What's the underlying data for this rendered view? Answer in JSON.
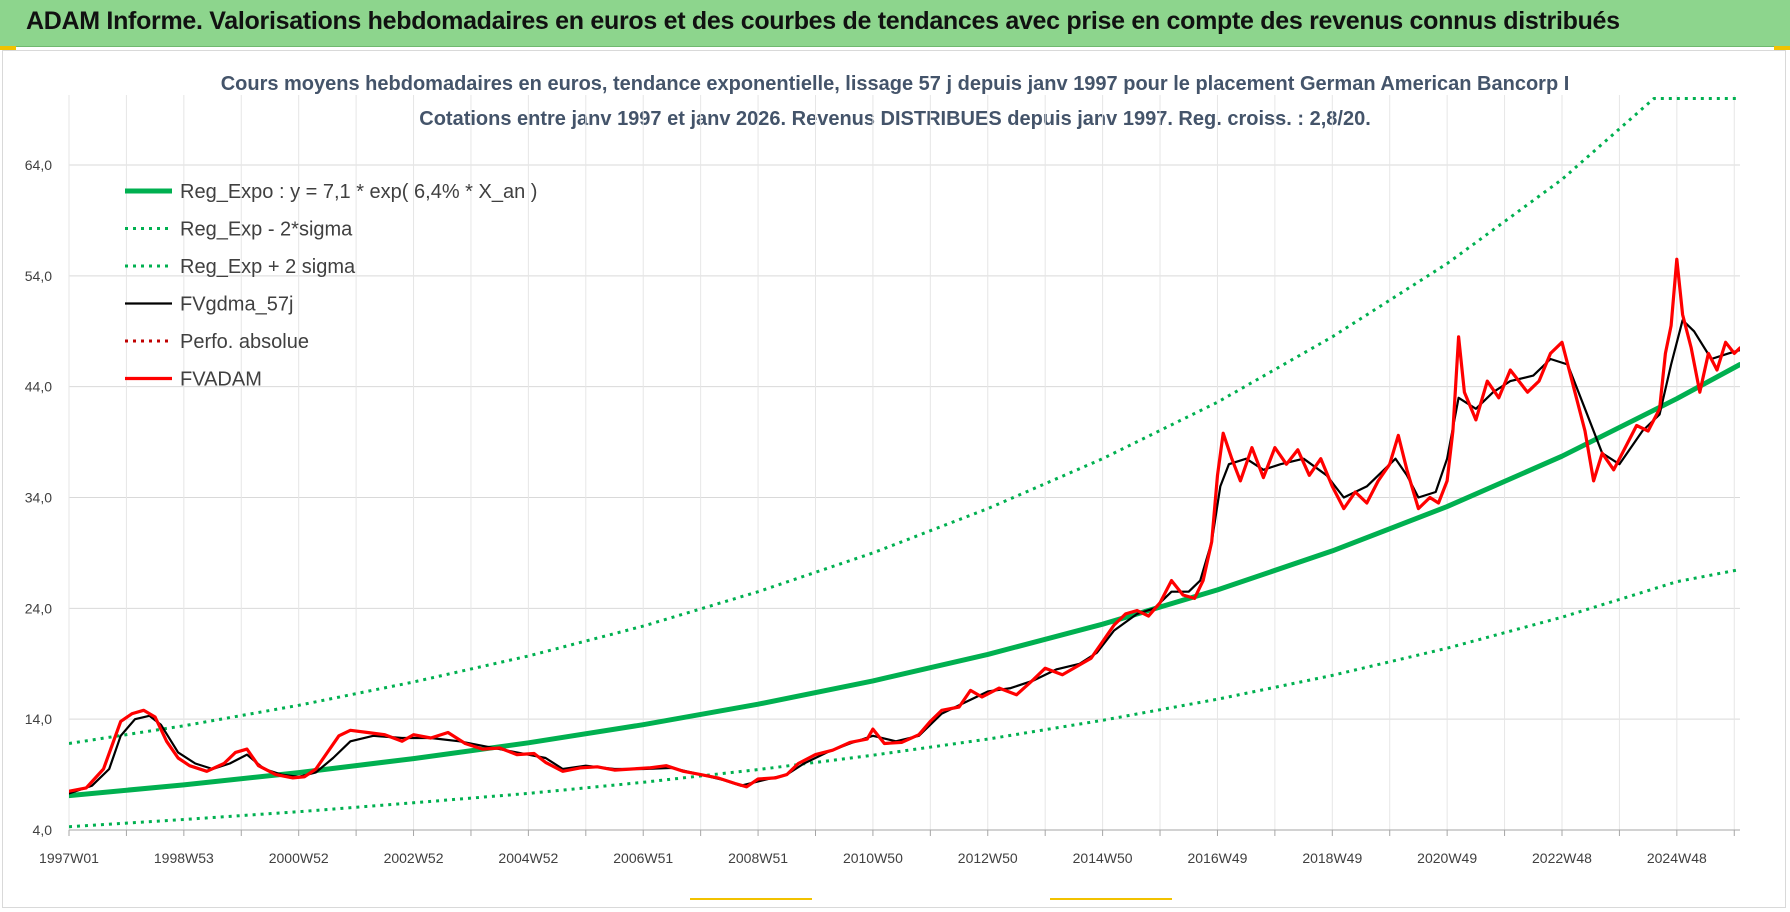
{
  "banner": {
    "title": "ADAM Informe. Valorisations hebdomadaires en euros et des courbes de tendances avec prise en compte des revenus connus distribués",
    "color": "#8dd58d"
  },
  "chart_data": {
    "type": "line",
    "title": "Cours moyens hebdomadaires en euros, tendance exponentielle, lissage 57 j depuis janv 1997  pour le placement German American Bancorp I",
    "subtitle": "Cotations entre janv 1997 et janv 2026. Revenus DISTRIBUES depuis janv 1997.  Reg. croiss. : 2,8/20.",
    "xlabel": "",
    "ylabel": "",
    "x_range": [
      1997.0,
      2026.1
    ],
    "ylim": [
      4.0,
      70.0
    ],
    "y_ticks": [
      4.0,
      14.0,
      24.0,
      34.0,
      44.0,
      54.0,
      64.0
    ],
    "y_tick_labels": [
      "4,0",
      "14,0",
      "24,0",
      "34,0",
      "44,0",
      "54,0",
      "64,0"
    ],
    "x_tick_labels": [
      {
        "x": 1997.0,
        "label": "1997W01"
      },
      {
        "x": 1999.0,
        "label": "1998W53"
      },
      {
        "x": 2001.0,
        "label": "2000W52"
      },
      {
        "x": 2003.0,
        "label": "2002W52"
      },
      {
        "x": 2005.0,
        "label": "2004W52"
      },
      {
        "x": 2007.0,
        "label": "2006W51"
      },
      {
        "x": 2009.0,
        "label": "2008W51"
      },
      {
        "x": 2011.0,
        "label": "2010W50"
      },
      {
        "x": 2013.0,
        "label": "2012W50"
      },
      {
        "x": 2015.0,
        "label": "2014W50"
      },
      {
        "x": 2017.0,
        "label": "2016W49"
      },
      {
        "x": 2019.0,
        "label": "2018W49"
      },
      {
        "x": 2021.0,
        "label": "2020W49"
      },
      {
        "x": 2023.0,
        "label": "2022W48"
      },
      {
        "x": 2025.0,
        "label": "2024W48"
      }
    ],
    "grid": true,
    "legend_position": "top-left",
    "series": [
      {
        "name": "Reg_Expo : y = 7,1 * exp( 6,4% *  X_an )",
        "color": "#00b050",
        "style": "solid-thick",
        "points": [
          [
            1997.0,
            7.1
          ],
          [
            1999.0,
            8.07
          ],
          [
            2001.0,
            9.18
          ],
          [
            2003.0,
            10.44
          ],
          [
            2005.0,
            11.87
          ],
          [
            2007.0,
            13.5
          ],
          [
            2009.0,
            15.35
          ],
          [
            2011.0,
            17.45
          ],
          [
            2013.0,
            19.84
          ],
          [
            2015.0,
            22.57
          ],
          [
            2017.0,
            25.66
          ],
          [
            2019.0,
            29.18
          ],
          [
            2021.0,
            33.18
          ],
          [
            2023.0,
            37.73
          ],
          [
            2025.0,
            42.91
          ],
          [
            2026.1,
            46.0
          ]
        ]
      },
      {
        "name": "Reg_Exp - 2*sigma",
        "color": "#00b050",
        "style": "dotted",
        "points": [
          [
            1997.0,
            4.3
          ],
          [
            1999.0,
            4.95
          ],
          [
            2001.0,
            5.65
          ],
          [
            2003.0,
            6.45
          ],
          [
            2005.0,
            7.3
          ],
          [
            2007.0,
            8.3
          ],
          [
            2009.0,
            9.45
          ],
          [
            2011.0,
            10.75
          ],
          [
            2013.0,
            12.2
          ],
          [
            2015.0,
            13.9
          ],
          [
            2017.0,
            15.8
          ],
          [
            2019.0,
            17.95
          ],
          [
            2021.0,
            20.4
          ],
          [
            2023.0,
            23.2
          ],
          [
            2025.0,
            26.4
          ],
          [
            2026.1,
            27.5
          ]
        ]
      },
      {
        "name": "Reg_Exp + 2 sigma",
        "color": "#00b050",
        "style": "dotted",
        "points": [
          [
            1997.0,
            11.8
          ],
          [
            1999.0,
            13.4
          ],
          [
            2001.0,
            15.25
          ],
          [
            2003.0,
            17.35
          ],
          [
            2005.0,
            19.7
          ],
          [
            2007.0,
            22.4
          ],
          [
            2009.0,
            25.5
          ],
          [
            2011.0,
            29.0
          ],
          [
            2013.0,
            33.0
          ],
          [
            2015.0,
            37.5
          ],
          [
            2017.0,
            42.6
          ],
          [
            2019.0,
            48.5
          ],
          [
            2021.0,
            55.1
          ],
          [
            2023.0,
            62.7
          ],
          [
            2024.6,
            70.0
          ],
          [
            2026.1,
            70.0
          ]
        ]
      },
      {
        "name": "FVgdma_57j",
        "color": "#000000",
        "style": "solid",
        "points": [
          [
            1997.0,
            7.3
          ],
          [
            1997.4,
            8.0
          ],
          [
            1997.7,
            9.5
          ],
          [
            1997.9,
            12.5
          ],
          [
            1998.15,
            14.0
          ],
          [
            1998.4,
            14.3
          ],
          [
            1998.6,
            13.5
          ],
          [
            1998.9,
            11.0
          ],
          [
            1999.2,
            10.0
          ],
          [
            1999.5,
            9.5
          ],
          [
            1999.8,
            10.0
          ],
          [
            2000.1,
            10.8
          ],
          [
            2000.4,
            9.5
          ],
          [
            2000.7,
            9.0
          ],
          [
            2001.0,
            8.8
          ],
          [
            2001.3,
            9.2
          ],
          [
            2001.6,
            10.5
          ],
          [
            2001.9,
            12.0
          ],
          [
            2002.3,
            12.5
          ],
          [
            2002.8,
            12.3
          ],
          [
            2003.3,
            12.3
          ],
          [
            2003.8,
            12.0
          ],
          [
            2004.3,
            11.5
          ],
          [
            2004.8,
            11.0
          ],
          [
            2005.3,
            10.5
          ],
          [
            2005.6,
            9.5
          ],
          [
            2006.0,
            9.8
          ],
          [
            2006.5,
            9.5
          ],
          [
            2007.0,
            9.5
          ],
          [
            2007.5,
            9.6
          ],
          [
            2008.0,
            9.0
          ],
          [
            2008.4,
            8.5
          ],
          [
            2008.7,
            8.0
          ],
          [
            2009.1,
            8.5
          ],
          [
            2009.5,
            9.0
          ],
          [
            2009.8,
            10.0
          ],
          [
            2010.2,
            11.0
          ],
          [
            2010.6,
            11.8
          ],
          [
            2011.0,
            12.5
          ],
          [
            2011.4,
            12.0
          ],
          [
            2011.8,
            12.5
          ],
          [
            2012.2,
            14.5
          ],
          [
            2012.6,
            15.5
          ],
          [
            2013.0,
            16.5
          ],
          [
            2013.4,
            16.8
          ],
          [
            2013.8,
            17.5
          ],
          [
            2014.2,
            18.5
          ],
          [
            2014.6,
            19.0
          ],
          [
            2014.9,
            20.0
          ],
          [
            2015.2,
            22.0
          ],
          [
            2015.6,
            23.5
          ],
          [
            2015.9,
            24.0
          ],
          [
            2016.2,
            25.5
          ],
          [
            2016.5,
            25.5
          ],
          [
            2016.7,
            26.5
          ],
          [
            2016.9,
            30.0
          ],
          [
            2017.05,
            35.0
          ],
          [
            2017.2,
            37.0
          ],
          [
            2017.5,
            37.5
          ],
          [
            2017.8,
            36.5
          ],
          [
            2018.1,
            37.0
          ],
          [
            2018.5,
            37.5
          ],
          [
            2018.9,
            36.0
          ],
          [
            2019.2,
            34.0
          ],
          [
            2019.6,
            35.0
          ],
          [
            2019.9,
            36.5
          ],
          [
            2020.1,
            37.5
          ],
          [
            2020.3,
            36.0
          ],
          [
            2020.5,
            34.0
          ],
          [
            2020.8,
            34.5
          ],
          [
            2021.0,
            37.5
          ],
          [
            2021.2,
            43.0
          ],
          [
            2021.5,
            42.0
          ],
          [
            2021.8,
            43.5
          ],
          [
            2022.1,
            44.5
          ],
          [
            2022.5,
            45.0
          ],
          [
            2022.8,
            46.5
          ],
          [
            2023.1,
            46.0
          ],
          [
            2023.4,
            42.0
          ],
          [
            2023.7,
            38.0
          ],
          [
            2024.0,
            37.0
          ],
          [
            2024.4,
            40.0
          ],
          [
            2024.7,
            41.5
          ],
          [
            2024.9,
            46.0
          ],
          [
            2025.1,
            50.0
          ],
          [
            2025.3,
            49.0
          ],
          [
            2025.6,
            46.5
          ],
          [
            2025.9,
            47.0
          ],
          [
            2026.1,
            47.3
          ]
        ]
      },
      {
        "name": "Perfo. absolue",
        "color": "#c00000",
        "style": "dotted",
        "points": []
      },
      {
        "name": "FVADAM",
        "color": "#ff0000",
        "style": "solid-thick",
        "points": [
          [
            1997.0,
            7.5
          ],
          [
            1997.3,
            7.8
          ],
          [
            1997.6,
            9.5
          ],
          [
            1997.9,
            13.8
          ],
          [
            1998.1,
            14.5
          ],
          [
            1998.3,
            14.8
          ],
          [
            1998.5,
            14.2
          ],
          [
            1998.7,
            12.0
          ],
          [
            1998.9,
            10.5
          ],
          [
            1999.1,
            9.8
          ],
          [
            1999.4,
            9.3
          ],
          [
            1999.7,
            10.0
          ],
          [
            1999.9,
            11.0
          ],
          [
            2000.1,
            11.3
          ],
          [
            2000.3,
            9.8
          ],
          [
            2000.6,
            9.0
          ],
          [
            2000.9,
            8.7
          ],
          [
            2001.1,
            8.8
          ],
          [
            2001.3,
            9.5
          ],
          [
            2001.5,
            11.0
          ],
          [
            2001.7,
            12.5
          ],
          [
            2001.9,
            13.0
          ],
          [
            2002.2,
            12.8
          ],
          [
            2002.5,
            12.6
          ],
          [
            2002.8,
            12.0
          ],
          [
            2003.0,
            12.6
          ],
          [
            2003.3,
            12.3
          ],
          [
            2003.6,
            12.8
          ],
          [
            2003.9,
            11.8
          ],
          [
            2004.2,
            11.3
          ],
          [
            2004.5,
            11.4
          ],
          [
            2004.8,
            10.8
          ],
          [
            2005.1,
            10.9
          ],
          [
            2005.3,
            10.1
          ],
          [
            2005.6,
            9.3
          ],
          [
            2005.9,
            9.6
          ],
          [
            2006.2,
            9.7
          ],
          [
            2006.5,
            9.4
          ],
          [
            2006.8,
            9.5
          ],
          [
            2007.1,
            9.6
          ],
          [
            2007.4,
            9.8
          ],
          [
            2007.7,
            9.3
          ],
          [
            2008.0,
            9.0
          ],
          [
            2008.3,
            8.7
          ],
          [
            2008.6,
            8.2
          ],
          [
            2008.8,
            7.9
          ],
          [
            2009.0,
            8.6
          ],
          [
            2009.3,
            8.7
          ],
          [
            2009.5,
            9.0
          ],
          [
            2009.7,
            10.0
          ],
          [
            2010.0,
            10.8
          ],
          [
            2010.3,
            11.2
          ],
          [
            2010.6,
            11.9
          ],
          [
            2010.9,
            12.2
          ],
          [
            2011.0,
            13.1
          ],
          [
            2011.2,
            11.8
          ],
          [
            2011.5,
            11.9
          ],
          [
            2011.8,
            12.6
          ],
          [
            2012.0,
            13.8
          ],
          [
            2012.2,
            14.8
          ],
          [
            2012.5,
            15.1
          ],
          [
            2012.7,
            16.6
          ],
          [
            2012.9,
            16.0
          ],
          [
            2013.2,
            16.8
          ],
          [
            2013.5,
            16.2
          ],
          [
            2013.8,
            17.6
          ],
          [
            2014.0,
            18.6
          ],
          [
            2014.3,
            18.0
          ],
          [
            2014.6,
            18.9
          ],
          [
            2014.8,
            19.5
          ],
          [
            2015.0,
            21.0
          ],
          [
            2015.2,
            22.5
          ],
          [
            2015.4,
            23.5
          ],
          [
            2015.6,
            23.8
          ],
          [
            2015.8,
            23.3
          ],
          [
            2016.0,
            24.5
          ],
          [
            2016.2,
            26.5
          ],
          [
            2016.4,
            25.2
          ],
          [
            2016.6,
            24.9
          ],
          [
            2016.75,
            26.5
          ],
          [
            2016.9,
            30.0
          ],
          [
            2017.0,
            36.0
          ],
          [
            2017.1,
            39.8
          ],
          [
            2017.25,
            37.5
          ],
          [
            2017.4,
            35.5
          ],
          [
            2017.6,
            38.5
          ],
          [
            2017.8,
            35.8
          ],
          [
            2018.0,
            38.5
          ],
          [
            2018.2,
            37.0
          ],
          [
            2018.4,
            38.3
          ],
          [
            2018.6,
            36.0
          ],
          [
            2018.8,
            37.5
          ],
          [
            2019.0,
            35.0
          ],
          [
            2019.2,
            33.0
          ],
          [
            2019.4,
            34.5
          ],
          [
            2019.6,
            33.5
          ],
          [
            2019.8,
            35.5
          ],
          [
            2020.0,
            37.0
          ],
          [
            2020.15,
            39.6
          ],
          [
            2020.3,
            36.5
          ],
          [
            2020.5,
            33.0
          ],
          [
            2020.7,
            34.0
          ],
          [
            2020.85,
            33.5
          ],
          [
            2021.0,
            35.5
          ],
          [
            2021.1,
            40.0
          ],
          [
            2021.2,
            48.5
          ],
          [
            2021.3,
            43.5
          ],
          [
            2021.5,
            41.0
          ],
          [
            2021.7,
            44.5
          ],
          [
            2021.9,
            43.0
          ],
          [
            2022.1,
            45.5
          ],
          [
            2022.4,
            43.5
          ],
          [
            2022.6,
            44.5
          ],
          [
            2022.8,
            47.0
          ],
          [
            2023.0,
            48.0
          ],
          [
            2023.2,
            44.0
          ],
          [
            2023.4,
            40.0
          ],
          [
            2023.55,
            35.5
          ],
          [
            2023.7,
            38.0
          ],
          [
            2023.9,
            36.5
          ],
          [
            2024.1,
            38.5
          ],
          [
            2024.3,
            40.5
          ],
          [
            2024.5,
            40.0
          ],
          [
            2024.7,
            42.0
          ],
          [
            2024.8,
            47.0
          ],
          [
            2024.9,
            49.5
          ],
          [
            2025.0,
            55.5
          ],
          [
            2025.1,
            50.5
          ],
          [
            2025.25,
            47.5
          ],
          [
            2025.4,
            43.5
          ],
          [
            2025.55,
            47.0
          ],
          [
            2025.7,
            45.5
          ],
          [
            2025.85,
            48.0
          ],
          [
            2026.0,
            47.0
          ],
          [
            2026.1,
            47.5
          ]
        ]
      }
    ]
  }
}
